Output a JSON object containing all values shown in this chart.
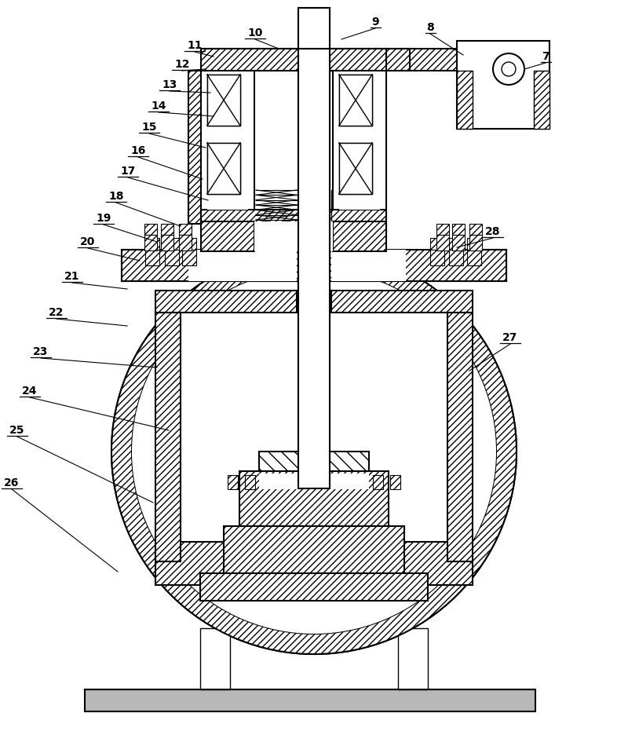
{
  "bg_color": "#ffffff",
  "black": "#000000",
  "gray_fill": "#c0c0c0",
  "hatch_fill": "////",
  "hatch_fill2": "\\\\",
  "label_data": [
    [
      "7",
      695,
      72
    ],
    [
      "8",
      548,
      35
    ],
    [
      "9",
      478,
      28
    ],
    [
      "10",
      325,
      42
    ],
    [
      "11",
      248,
      58
    ],
    [
      "12",
      232,
      82
    ],
    [
      "13",
      216,
      108
    ],
    [
      "14",
      202,
      135
    ],
    [
      "15",
      190,
      162
    ],
    [
      "16",
      176,
      192
    ],
    [
      "17",
      163,
      218
    ],
    [
      "18",
      148,
      250
    ],
    [
      "19",
      132,
      278
    ],
    [
      "20",
      112,
      308
    ],
    [
      "21",
      92,
      352
    ],
    [
      "22",
      72,
      398
    ],
    [
      "23",
      52,
      448
    ],
    [
      "24",
      38,
      498
    ],
    [
      "25",
      22,
      548
    ],
    [
      "26",
      15,
      615
    ],
    [
      "27",
      650,
      430
    ],
    [
      "28",
      628,
      295
    ]
  ],
  "leader_lines": [
    [
      "7",
      695,
      72,
      668,
      88
    ],
    [
      "8",
      548,
      35,
      590,
      70
    ],
    [
      "9",
      478,
      28,
      435,
      50
    ],
    [
      "10",
      325,
      42,
      355,
      62
    ],
    [
      "11",
      248,
      58,
      272,
      72
    ],
    [
      "12",
      232,
      82,
      262,
      88
    ],
    [
      "13",
      216,
      108,
      268,
      118
    ],
    [
      "14",
      202,
      135,
      272,
      148
    ],
    [
      "15",
      190,
      162,
      262,
      188
    ],
    [
      "16",
      176,
      192,
      258,
      228
    ],
    [
      "17",
      163,
      218,
      265,
      255
    ],
    [
      "18",
      148,
      250,
      230,
      288
    ],
    [
      "19",
      132,
      278,
      200,
      308
    ],
    [
      "20",
      112,
      308,
      178,
      332
    ],
    [
      "21",
      92,
      352,
      162,
      368
    ],
    [
      "22",
      72,
      398,
      162,
      415
    ],
    [
      "23",
      52,
      448,
      200,
      468
    ],
    [
      "24",
      38,
      498,
      215,
      548
    ],
    [
      "25",
      22,
      548,
      195,
      640
    ],
    [
      "26",
      15,
      615,
      150,
      728
    ],
    [
      "27",
      650,
      430,
      598,
      472
    ],
    [
      "28",
      628,
      295,
      582,
      315
    ]
  ]
}
